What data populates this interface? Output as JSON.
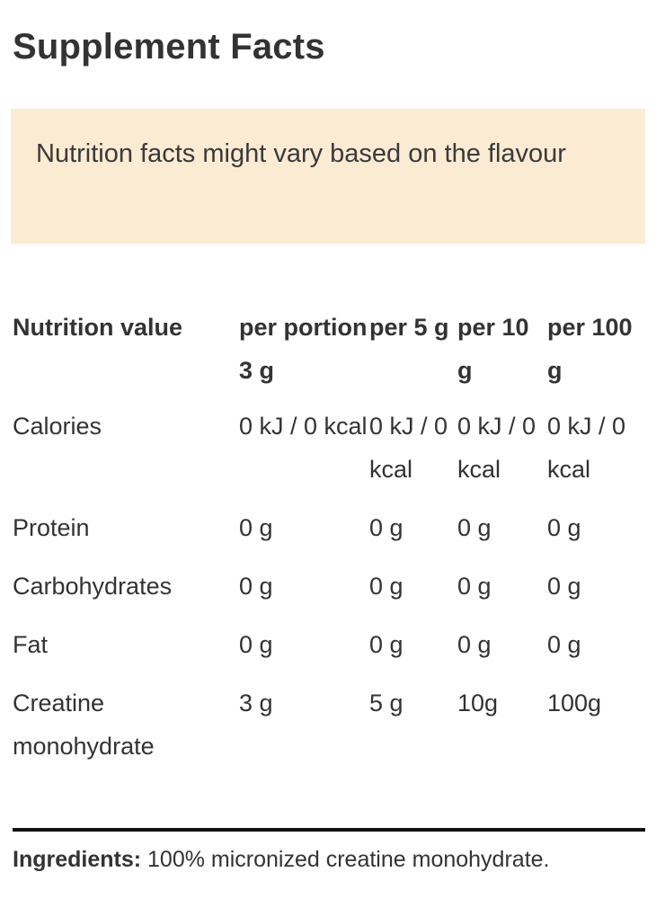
{
  "title": "Supplement Facts",
  "notice": "Nutrition facts might vary based on the flavour",
  "table": {
    "headers": [
      "Nutrition value",
      "per portion 3 g",
      "per 5 g",
      "per 10 g",
      "per 100 g"
    ],
    "rows": [
      [
        "Calories",
        "0 kJ / 0 kcal",
        "0 kJ / 0 kcal",
        "0 kJ / 0 kcal",
        "0 kJ / 0 kcal"
      ],
      [
        "Protein",
        "0 g",
        "0 g",
        "0 g",
        "0 g"
      ],
      [
        "Carbohydrates",
        "0 g",
        "0 g",
        "0 g",
        "0 g"
      ],
      [
        "Fat",
        "0 g",
        "0 g",
        "0 g",
        "0 g"
      ],
      [
        "Creatine monohydrate",
        "3 g",
        "5 g",
        "10g",
        "100g"
      ]
    ]
  },
  "ingredients": {
    "label": "Ingredients:",
    "text": " 100% micronized creatine monohydrate."
  },
  "colors": {
    "notice_background": "#fbebd3",
    "text": "#333333",
    "divider": "#111111"
  }
}
